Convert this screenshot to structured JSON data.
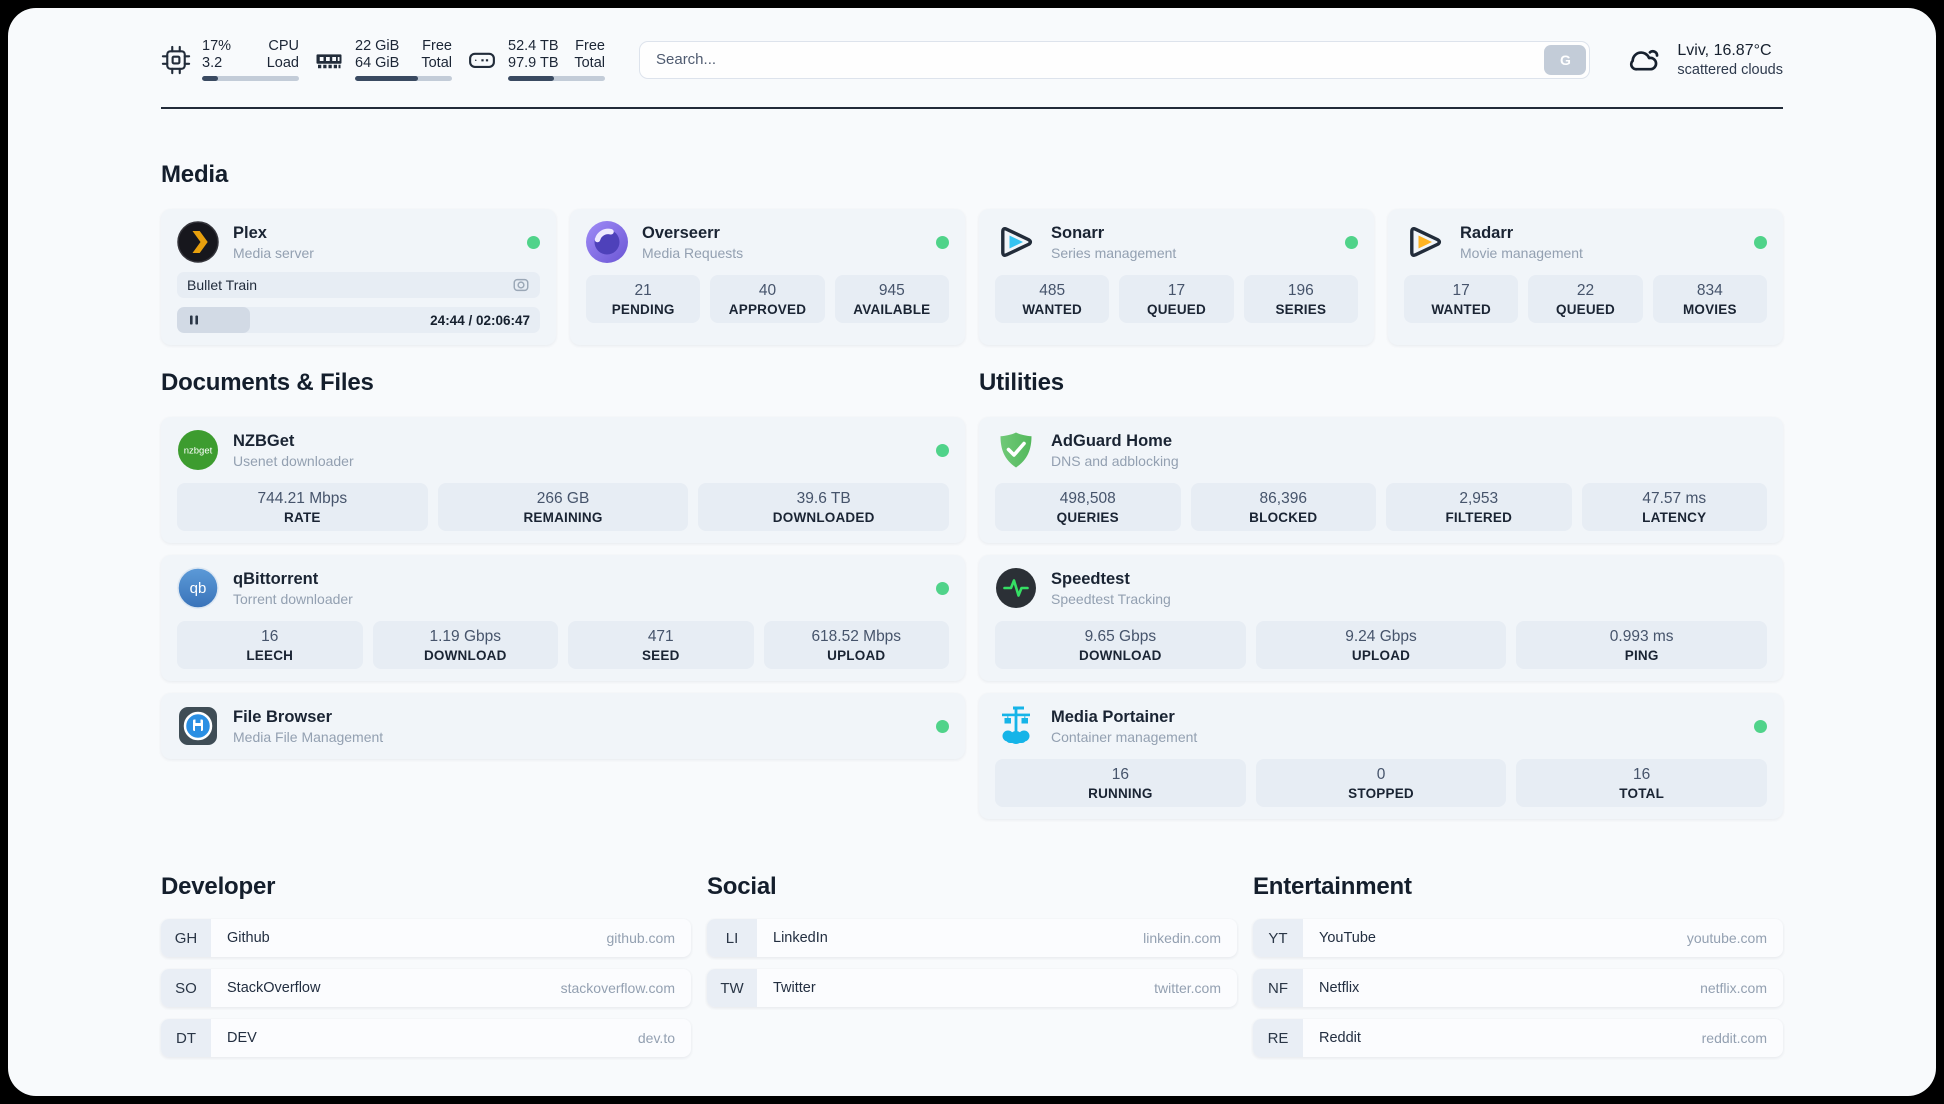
{
  "theme": {
    "status_online_color": "#50d38a",
    "progress_fill_color": "#3a4a61",
    "divider_color": "#222b39"
  },
  "header": {
    "system_stats": [
      {
        "icon": "cpu-icon",
        "rows": [
          [
            "17%",
            "CPU"
          ],
          [
            "3.2",
            "Load"
          ]
        ],
        "progress_percent": 17
      },
      {
        "icon": "ram-icon",
        "rows": [
          [
            "22 GiB",
            "Free"
          ],
          [
            "64 GiB",
            "Total"
          ]
        ],
        "progress_percent": 65
      },
      {
        "icon": "disk-icon",
        "rows": [
          [
            "52.4 TB",
            "Free"
          ],
          [
            "97.9 TB",
            "Total"
          ]
        ],
        "progress_percent": 47
      }
    ],
    "search": {
      "placeholder": "Search...",
      "button_label": "G"
    },
    "weather": {
      "icon": "cloud-icon",
      "location_temp": "Lviv, 16.87°C",
      "condition": "scattered clouds"
    }
  },
  "media_section": {
    "title": "Media",
    "cards": [
      {
        "icon": "plex-icon",
        "title": "Plex",
        "subtitle": "Media server",
        "online": true,
        "player": {
          "now_playing": "Bullet Train",
          "right_icon": "camera-icon",
          "time": "24:44 / 02:06:47",
          "progress_percent": 20
        }
      },
      {
        "icon": "overseerr-icon",
        "title": "Overseerr",
        "subtitle": "Media Requests",
        "online": true,
        "stats": [
          [
            "21",
            "PENDING"
          ],
          [
            "40",
            "APPROVED"
          ],
          [
            "945",
            "AVAILABLE"
          ]
        ]
      },
      {
        "icon": "sonarr-icon",
        "title": "Sonarr",
        "subtitle": "Series management",
        "online": true,
        "stats": [
          [
            "485",
            "WANTED"
          ],
          [
            "17",
            "QUEUED"
          ],
          [
            "196",
            "SERIES"
          ]
        ]
      },
      {
        "icon": "radarr-icon",
        "title": "Radarr",
        "subtitle": "Movie management",
        "online": true,
        "stats": [
          [
            "17",
            "WANTED"
          ],
          [
            "22",
            "QUEUED"
          ],
          [
            "834",
            "MOVIES"
          ]
        ]
      }
    ]
  },
  "documents_section": {
    "title": "Documents & Files",
    "cards": [
      {
        "icon": "nzbget-icon",
        "title": "NZBGet",
        "subtitle": "Usenet downloader",
        "online": true,
        "stats": [
          [
            "744.21 Mbps",
            "RATE"
          ],
          [
            "266 GB",
            "REMAINING"
          ],
          [
            "39.6 TB",
            "DOWNLOADED"
          ]
        ]
      },
      {
        "icon": "qbittorrent-icon",
        "title": "qBittorrent",
        "subtitle": "Torrent downloader",
        "online": true,
        "stats": [
          [
            "16",
            "LEECH"
          ],
          [
            "1.19 Gbps",
            "DOWNLOAD"
          ],
          [
            "471",
            "SEED"
          ],
          [
            "618.52 Mbps",
            "UPLOAD"
          ]
        ]
      },
      {
        "icon": "filebrowser-icon",
        "title": "File Browser",
        "subtitle": "Media File Management",
        "online": true
      }
    ]
  },
  "utilities_section": {
    "title": "Utilities",
    "cards": [
      {
        "icon": "adguard-icon",
        "title": "AdGuard Home",
        "subtitle": "DNS and adblocking",
        "online": false,
        "stats": [
          [
            "498,508",
            "QUERIES"
          ],
          [
            "86,396",
            "BLOCKED"
          ],
          [
            "2,953",
            "FILTERED"
          ],
          [
            "47.57 ms",
            "LATENCY"
          ]
        ]
      },
      {
        "icon": "speedtest-icon",
        "title": "Speedtest",
        "subtitle": "Speedtest Tracking",
        "online": false,
        "stats": [
          [
            "9.65 Gbps",
            "DOWNLOAD"
          ],
          [
            "9.24 Gbps",
            "UPLOAD"
          ],
          [
            "0.993 ms",
            "PING"
          ]
        ]
      },
      {
        "icon": "portainer-icon",
        "title": "Media Portainer",
        "subtitle": "Container management",
        "online": true,
        "stats": [
          [
            "16",
            "RUNNING"
          ],
          [
            "0",
            "STOPPED"
          ],
          [
            "16",
            "TOTAL"
          ]
        ]
      }
    ]
  },
  "bookmark_sections": [
    {
      "title": "Developer",
      "links": [
        {
          "abbr": "GH",
          "name": "Github",
          "url": "github.com"
        },
        {
          "abbr": "SO",
          "name": "StackOverflow",
          "url": "stackoverflow.com"
        },
        {
          "abbr": "DT",
          "name": "DEV",
          "url": "dev.to"
        }
      ]
    },
    {
      "title": "Social",
      "links": [
        {
          "abbr": "LI",
          "name": "LinkedIn",
          "url": "linkedin.com"
        },
        {
          "abbr": "TW",
          "name": "Twitter",
          "url": "twitter.com"
        }
      ]
    },
    {
      "title": "Entertainment",
      "links": [
        {
          "abbr": "YT",
          "name": "YouTube",
          "url": "youtube.com"
        },
        {
          "abbr": "NF",
          "name": "Netflix",
          "url": "netflix.com"
        },
        {
          "abbr": "RE",
          "name": "Reddit",
          "url": "reddit.com"
        }
      ]
    }
  ]
}
